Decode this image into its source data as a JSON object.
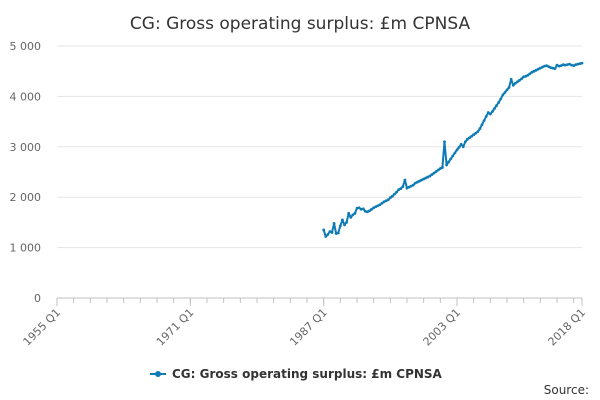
{
  "chart_data": {
    "type": "line",
    "title": "CG: Gross operating surplus: £m CPNSA",
    "xlabel": "",
    "ylabel": "",
    "x_range": [
      "1955 Q1",
      "2018 Q1"
    ],
    "ylim": [
      0,
      5000
    ],
    "y_ticks": [
      0,
      1000,
      2000,
      3000,
      4000,
      5000
    ],
    "y_tick_labels": [
      "0",
      "1 000",
      "2 000",
      "3 000",
      "4 000",
      "5 000"
    ],
    "x_tick_labels": [
      "1955 Q1",
      "1971 Q1",
      "1987 Q1",
      "2003 Q1",
      "2018 Q1"
    ],
    "x_tick_years": [
      1955,
      1971,
      1987,
      2003,
      2018
    ],
    "grid": "horizontal",
    "legend_position": "bottom",
    "series": [
      {
        "name": "CG: Gross operating surplus: £m CPNSA",
        "color": "#0f7bb5",
        "points": [
          [
            1987.0,
            1350
          ],
          [
            1987.25,
            1220
          ],
          [
            1987.5,
            1260
          ],
          [
            1987.75,
            1320
          ],
          [
            1988.0,
            1300
          ],
          [
            1988.25,
            1480
          ],
          [
            1988.5,
            1280
          ],
          [
            1988.75,
            1290
          ],
          [
            1989.0,
            1430
          ],
          [
            1989.25,
            1550
          ],
          [
            1989.5,
            1450
          ],
          [
            1989.75,
            1500
          ],
          [
            1990.0,
            1680
          ],
          [
            1990.25,
            1600
          ],
          [
            1990.5,
            1650
          ],
          [
            1990.75,
            1680
          ],
          [
            1991.0,
            1780
          ],
          [
            1991.25,
            1790
          ],
          [
            1991.5,
            1760
          ],
          [
            1991.75,
            1770
          ],
          [
            1992.0,
            1720
          ],
          [
            1992.25,
            1710
          ],
          [
            1992.5,
            1730
          ],
          [
            1992.75,
            1760
          ],
          [
            1993.0,
            1790
          ],
          [
            1993.25,
            1810
          ],
          [
            1993.5,
            1830
          ],
          [
            1993.75,
            1850
          ],
          [
            1994.0,
            1880
          ],
          [
            1994.25,
            1910
          ],
          [
            1994.5,
            1930
          ],
          [
            1994.75,
            1950
          ],
          [
            1995.0,
            1990
          ],
          [
            1995.25,
            2020
          ],
          [
            1995.5,
            2060
          ],
          [
            1995.75,
            2100
          ],
          [
            1996.0,
            2150
          ],
          [
            1996.25,
            2170
          ],
          [
            1996.5,
            2210
          ],
          [
            1996.75,
            2340
          ],
          [
            1997.0,
            2180
          ],
          [
            1997.25,
            2200
          ],
          [
            1997.5,
            2220
          ],
          [
            1997.75,
            2240
          ],
          [
            1998.0,
            2280
          ],
          [
            1998.25,
            2300
          ],
          [
            1998.5,
            2320
          ],
          [
            1998.75,
            2340
          ],
          [
            1999.0,
            2360
          ],
          [
            1999.25,
            2380
          ],
          [
            1999.5,
            2400
          ],
          [
            1999.75,
            2420
          ],
          [
            2000.0,
            2450
          ],
          [
            2000.25,
            2480
          ],
          [
            2000.5,
            2510
          ],
          [
            2000.75,
            2540
          ],
          [
            2001.0,
            2570
          ],
          [
            2001.25,
            2590
          ],
          [
            2001.5,
            3100
          ],
          [
            2001.75,
            2640
          ],
          [
            2002.0,
            2700
          ],
          [
            2002.25,
            2760
          ],
          [
            2002.5,
            2820
          ],
          [
            2002.75,
            2880
          ],
          [
            2003.0,
            2940
          ],
          [
            2003.25,
            2990
          ],
          [
            2003.5,
            3050
          ],
          [
            2003.75,
            3000
          ],
          [
            2004.0,
            3100
          ],
          [
            2004.25,
            3150
          ],
          [
            2004.5,
            3180
          ],
          [
            2004.75,
            3210
          ],
          [
            2005.0,
            3240
          ],
          [
            2005.25,
            3270
          ],
          [
            2005.5,
            3300
          ],
          [
            2005.75,
            3360
          ],
          [
            2006.0,
            3440
          ],
          [
            2006.25,
            3520
          ],
          [
            2006.5,
            3600
          ],
          [
            2006.75,
            3680
          ],
          [
            2007.0,
            3650
          ],
          [
            2007.25,
            3700
          ],
          [
            2007.5,
            3760
          ],
          [
            2007.75,
            3820
          ],
          [
            2008.0,
            3880
          ],
          [
            2008.25,
            3950
          ],
          [
            2008.5,
            4030
          ],
          [
            2008.75,
            4080
          ],
          [
            2009.0,
            4130
          ],
          [
            2009.25,
            4180
          ],
          [
            2009.5,
            4340
          ],
          [
            2009.75,
            4220
          ],
          [
            2010.0,
            4260
          ],
          [
            2010.25,
            4290
          ],
          [
            2010.5,
            4320
          ],
          [
            2010.75,
            4350
          ],
          [
            2011.0,
            4390
          ],
          [
            2011.25,
            4400
          ],
          [
            2011.5,
            4420
          ],
          [
            2011.75,
            4450
          ],
          [
            2012.0,
            4480
          ],
          [
            2012.25,
            4500
          ],
          [
            2012.5,
            4520
          ],
          [
            2012.75,
            4540
          ],
          [
            2013.0,
            4560
          ],
          [
            2013.25,
            4580
          ],
          [
            2013.5,
            4600
          ],
          [
            2013.75,
            4610
          ],
          [
            2014.0,
            4590
          ],
          [
            2014.25,
            4570
          ],
          [
            2014.5,
            4560
          ],
          [
            2014.75,
            4550
          ],
          [
            2015.0,
            4620
          ],
          [
            2015.25,
            4600
          ],
          [
            2015.5,
            4610
          ],
          [
            2015.75,
            4630
          ],
          [
            2016.0,
            4620
          ],
          [
            2016.25,
            4630
          ],
          [
            2016.5,
            4640
          ],
          [
            2016.75,
            4620
          ],
          [
            2017.0,
            4610
          ],
          [
            2017.25,
            4630
          ],
          [
            2017.5,
            4640
          ],
          [
            2017.75,
            4650
          ],
          [
            2018.0,
            4660
          ]
        ]
      }
    ]
  },
  "legend": {
    "label": "CG: Gross operating surplus: £m CPNSA"
  },
  "source": {
    "label": "Source:"
  }
}
